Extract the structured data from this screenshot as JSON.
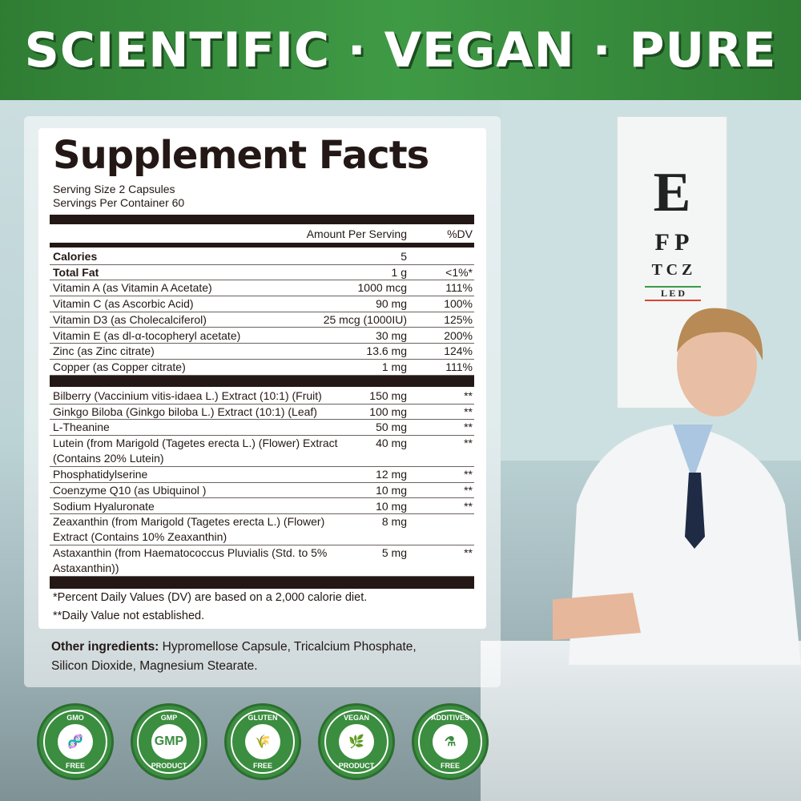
{
  "banner": {
    "title": "SCIENTIFIC · VEGAN · PURE"
  },
  "facts": {
    "title": "Supplement Facts",
    "serving_size": "Serving Size 2 Capsules",
    "servings_per_container": "Servings Per Container 60",
    "header_amount": "Amount Per Serving",
    "header_dv": "%DV",
    "nutrients": [
      {
        "name": "Calories",
        "amount": "5",
        "dv": "",
        "bold": true
      },
      {
        "name": "Total Fat",
        "amount": "1 g",
        "dv": "<1%*",
        "bold": true
      },
      {
        "name": "Vitamin A (as Vitamin A Acetate)",
        "amount": "1000 mcg",
        "dv": "111%"
      },
      {
        "name": "Vitamin C (as Ascorbic Acid)",
        "amount": "90 mg",
        "dv": "100%"
      },
      {
        "name": "Vitamin D3 (as Cholecalciferol)",
        "amount": "25 mcg (1000IU)",
        "dv": "125%"
      },
      {
        "name": "Vitamin E (as dl-α-tocopheryl acetate)",
        "amount": "30 mg",
        "dv": "200%"
      },
      {
        "name": "Zinc (as Zinc citrate)",
        "amount": "13.6 mg",
        "dv": "124%"
      },
      {
        "name": "Copper (as Copper citrate)",
        "amount": "1 mg",
        "dv": "111%"
      }
    ],
    "botanicals": [
      {
        "name": "Bilberry (Vaccinium vitis-idaea L.) Extract (10:1) (Fruit)",
        "amount": "150 mg",
        "dv": "**"
      },
      {
        "name": "Ginkgo Biloba (Ginkgo biloba L.) Extract (10:1) (Leaf)",
        "amount": "100 mg",
        "dv": "**"
      },
      {
        "name": "L-Theanine",
        "amount": "50 mg",
        "dv": "**"
      },
      {
        "name": "Lutein (from Marigold (Tagetes erecta L.) (Flower) Extract (Contains 20% Lutein)",
        "amount": "40 mg",
        "dv": "**",
        "two": true
      },
      {
        "name": "Phosphatidylserine",
        "amount": "12 mg",
        "dv": "**"
      },
      {
        "name": "Coenzyme Q10 (as Ubiquinol )",
        "amount": "10 mg",
        "dv": "**"
      },
      {
        "name": "Sodium Hyaluronate",
        "amount": "10 mg",
        "dv": "**"
      },
      {
        "name": "Zeaxanthin  (from Marigold (Tagetes erecta L.) (Flower) Extract (Contains 10% Zeaxanthin)",
        "amount": "8 mg",
        "dv": "",
        "two": true
      },
      {
        "name": "Astaxanthin (from Haematococcus Pluvialis (Std. to 5% Astaxanthin))",
        "amount": "5 mg",
        "dv": "**",
        "two": true
      }
    ],
    "footnote_1": "*Percent Daily Values (DV) are based on a 2,000 calorie diet.",
    "footnote_2": "**Daily Value not established."
  },
  "other_ingredients": {
    "label": "Other ingredients:",
    "text": " Hypromellose Capsule, Tricalcium Phosphate, Silicon Dioxide, Magnesium Stearate."
  },
  "eye_chart": {
    "lines": [
      "E",
      "F P",
      "T C Z",
      "L E D"
    ]
  },
  "badges": [
    {
      "top": "GMO",
      "center": "dna-icon",
      "bottom": "FREE"
    },
    {
      "top": "GMP",
      "center": "GMP",
      "bottom": "PRODUCT"
    },
    {
      "top": "GLUTEN",
      "center": "wheat-icon",
      "bottom": "FREE"
    },
    {
      "top": "VEGAN",
      "center": "leaf-icon",
      "bottom": "PRODUCT"
    },
    {
      "top": "ADDITIVES",
      "center": "flask-icon",
      "bottom": "FREE"
    }
  ],
  "colors": {
    "brand_green": "#3b8d3f",
    "text": "#231815"
  }
}
